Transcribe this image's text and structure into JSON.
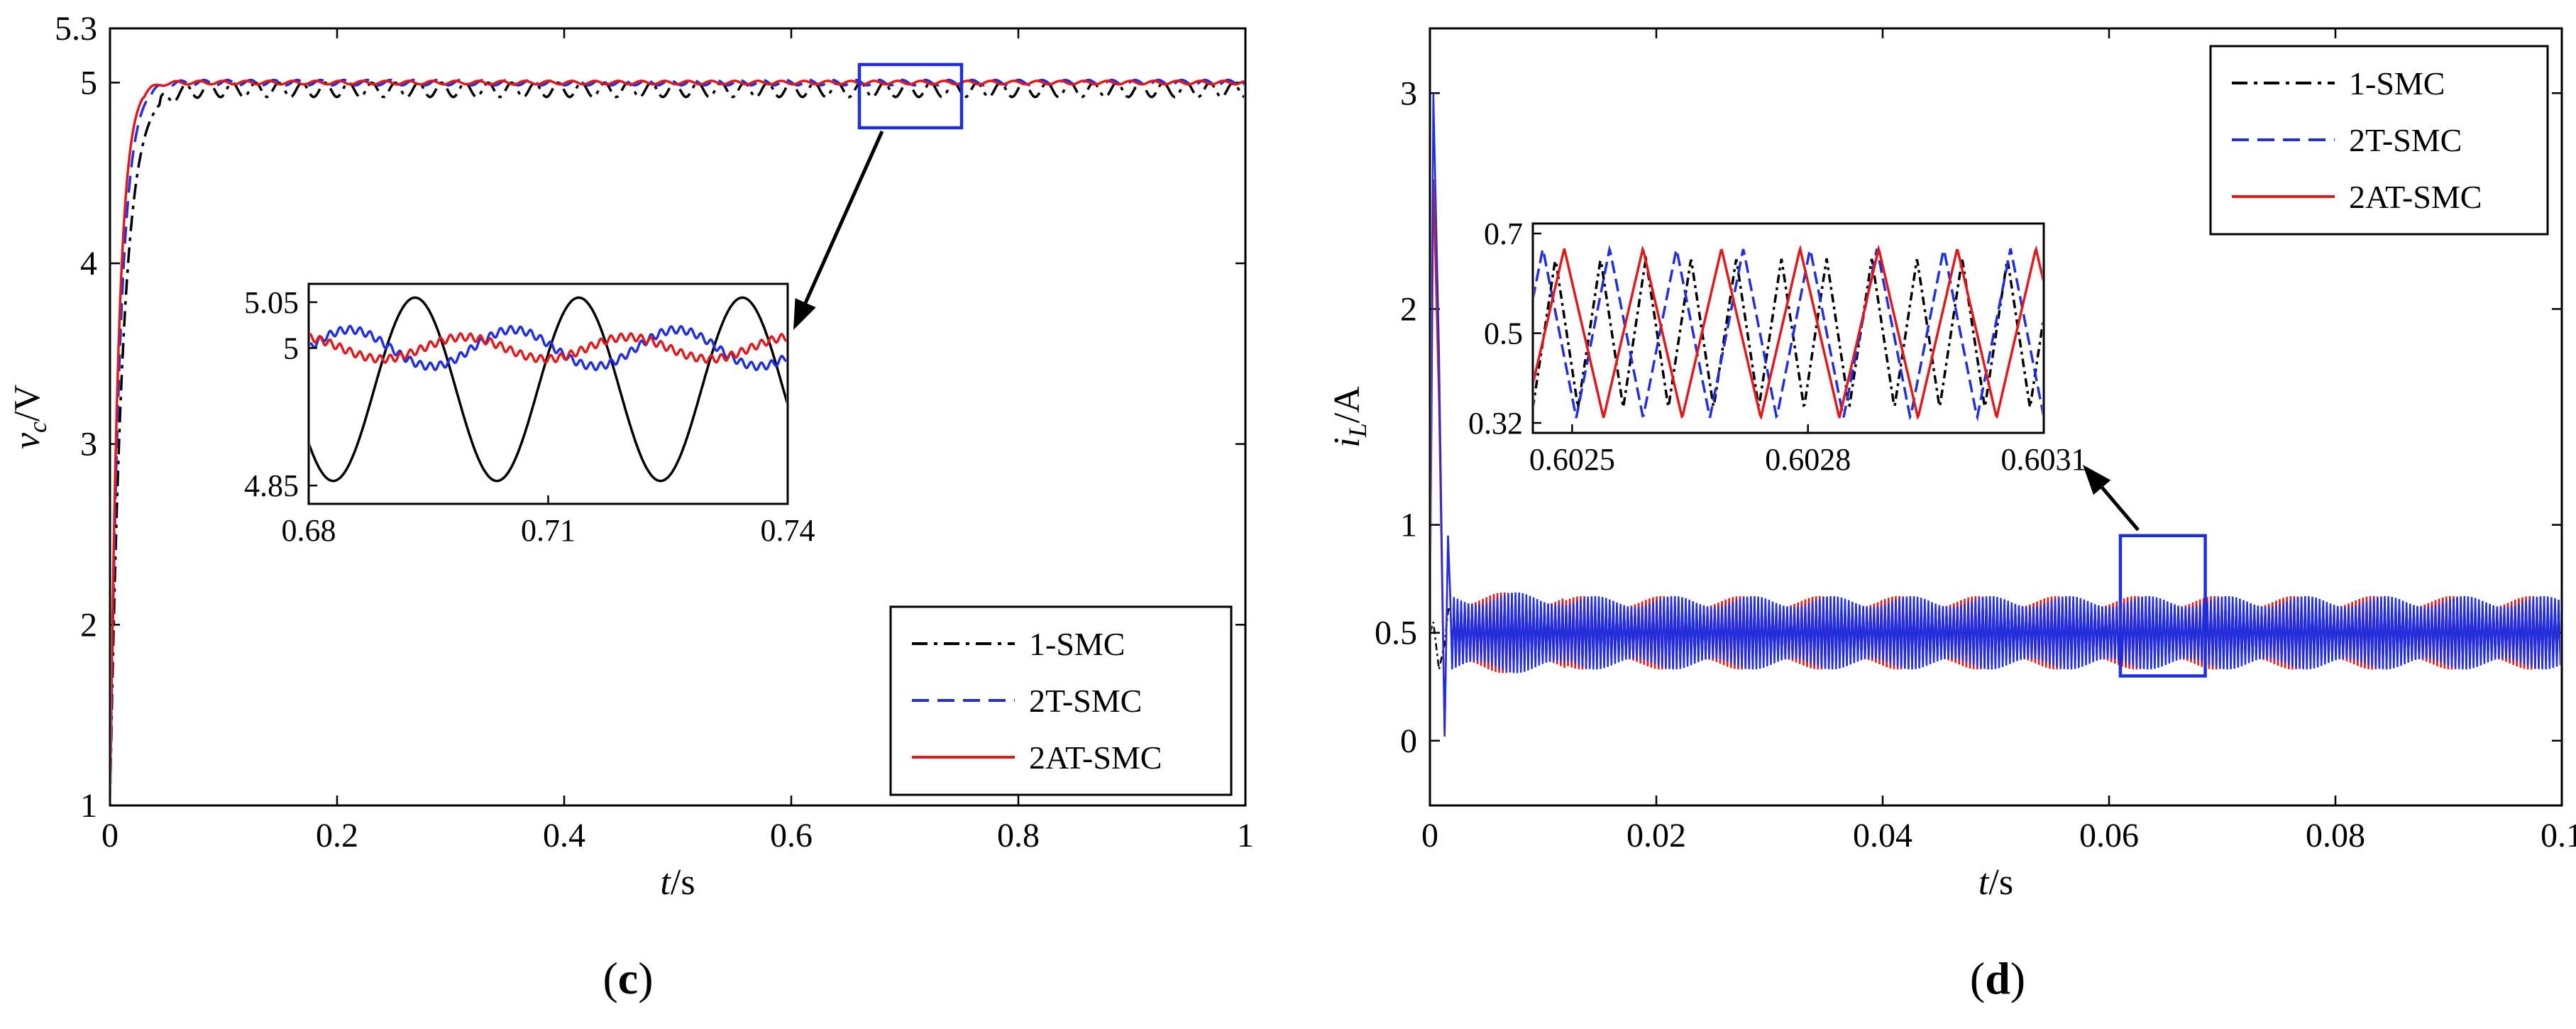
{
  "chart_data": [
    {
      "type": "line",
      "panel_label": "(c)",
      "panel_letter": "c",
      "xlabel_italic": "t",
      "xlabel_rest": "/s",
      "ylabel_italic": "v",
      "ylabel_sub": "c",
      "ylabel_rest": "/V",
      "xlim": [
        0,
        1
      ],
      "ylim": [
        1,
        5.3
      ],
      "xticks": [
        "0",
        "0.2",
        "0.4",
        "0.6",
        "0.8",
        "1"
      ],
      "yticks": [
        "1",
        "2",
        "3",
        "4",
        "5",
        "5.3"
      ],
      "legend": [
        "1-SMC",
        "2T-SMC",
        "2AT-SMC"
      ],
      "legend_position": "bottom-right",
      "series": [
        {
          "name": "1-SMC",
          "color": "#000000",
          "dash": "dashdot",
          "rise_time": 0.045,
          "settle": 4.96,
          "ripple": 0.08
        },
        {
          "name": "2T-SMC",
          "color": "#1f2fe0",
          "dash": "dashed",
          "rise_time": 0.035,
          "settle": 5.0,
          "ripple": 0.03
        },
        {
          "name": "2AT-SMC",
          "color": "#e0191b",
          "dash": "solid",
          "rise_time": 0.03,
          "settle": 5.0,
          "ripple": 0.02
        }
      ],
      "zoom_box": {
        "x": [
          0.66,
          0.75
        ],
        "y": [
          4.75,
          5.1
        ]
      },
      "inset": {
        "xlim": [
          0.68,
          0.74
        ],
        "ylim": [
          4.83,
          5.07
        ],
        "xticks": [
          "0.68",
          "0.71",
          "0.74"
        ],
        "yticks": [
          "4.85",
          "5",
          "5.05"
        ],
        "series": [
          {
            "name": "1-SMC",
            "mean": 4.955,
            "amplitude": 0.1,
            "period": 0.0205,
            "phase": 0.6
          },
          {
            "name": "2T-SMC",
            "mean": 5.0,
            "amplitude": 0.02,
            "period": 0.0205,
            "phase": 1.0
          },
          {
            "name": "2AT-SMC",
            "mean": 5.0,
            "amplitude": 0.012,
            "period": 0.0205,
            "phase": 0.3
          }
        ]
      }
    },
    {
      "type": "line",
      "panel_label": "(d)",
      "panel_letter": "d",
      "xlabel_italic": "t",
      "xlabel_rest": "/s",
      "ylabel_italic": "i",
      "ylabel_sub": "L",
      "ylabel_rest": "/A",
      "xlim": [
        0,
        0.1
      ],
      "ylim": [
        -0.3,
        3.3
      ],
      "xticks": [
        "0",
        "0.02",
        "0.04",
        "0.06",
        "0.08",
        "0.1"
      ],
      "yticks": [
        "0",
        "0.5",
        "1",
        "2",
        "3"
      ],
      "legend": [
        "1-SMC",
        "2T-SMC",
        "2AT-SMC"
      ],
      "legend_position": "top-right",
      "series": [
        {
          "name": "1-SMC",
          "color": "#000000",
          "dash": "dashdot",
          "peak": 0.55,
          "mean": 0.5,
          "band": 0.12
        },
        {
          "name": "2T-SMC",
          "color": "#1f2fe0",
          "dash": "dashed",
          "peak": 3.0,
          "mean": 0.5,
          "band": 0.17
        },
        {
          "name": "2AT-SMC",
          "color": "#e0191b",
          "dash": "solid",
          "peak": 2.6,
          "mean": 0.5,
          "band": 0.17
        }
      ],
      "zoom_box": {
        "x": [
          0.061,
          0.0685
        ],
        "y": [
          0.3,
          0.95
        ]
      },
      "inset": {
        "xlim": [
          0.60245,
          0.6031
        ],
        "ylim": [
          0.3,
          0.72
        ],
        "xticks": [
          "0.6025",
          "0.6028",
          "0.6031"
        ],
        "yticks": [
          "0.32",
          "0.5",
          "0.7"
        ],
        "series": [
          {
            "name": "1-SMC",
            "mean": 0.5,
            "amplitude": 0.15,
            "period": 5.75e-05,
            "phase": 0.0
          },
          {
            "name": "2T-SMC",
            "mean": 0.5,
            "amplitude": 0.17,
            "period": 8.5e-05,
            "phase": 0.35
          },
          {
            "name": "2AT-SMC",
            "mean": 0.5,
            "amplitude": 0.17,
            "period": 0.0001,
            "phase": 0.1
          }
        ]
      }
    }
  ]
}
